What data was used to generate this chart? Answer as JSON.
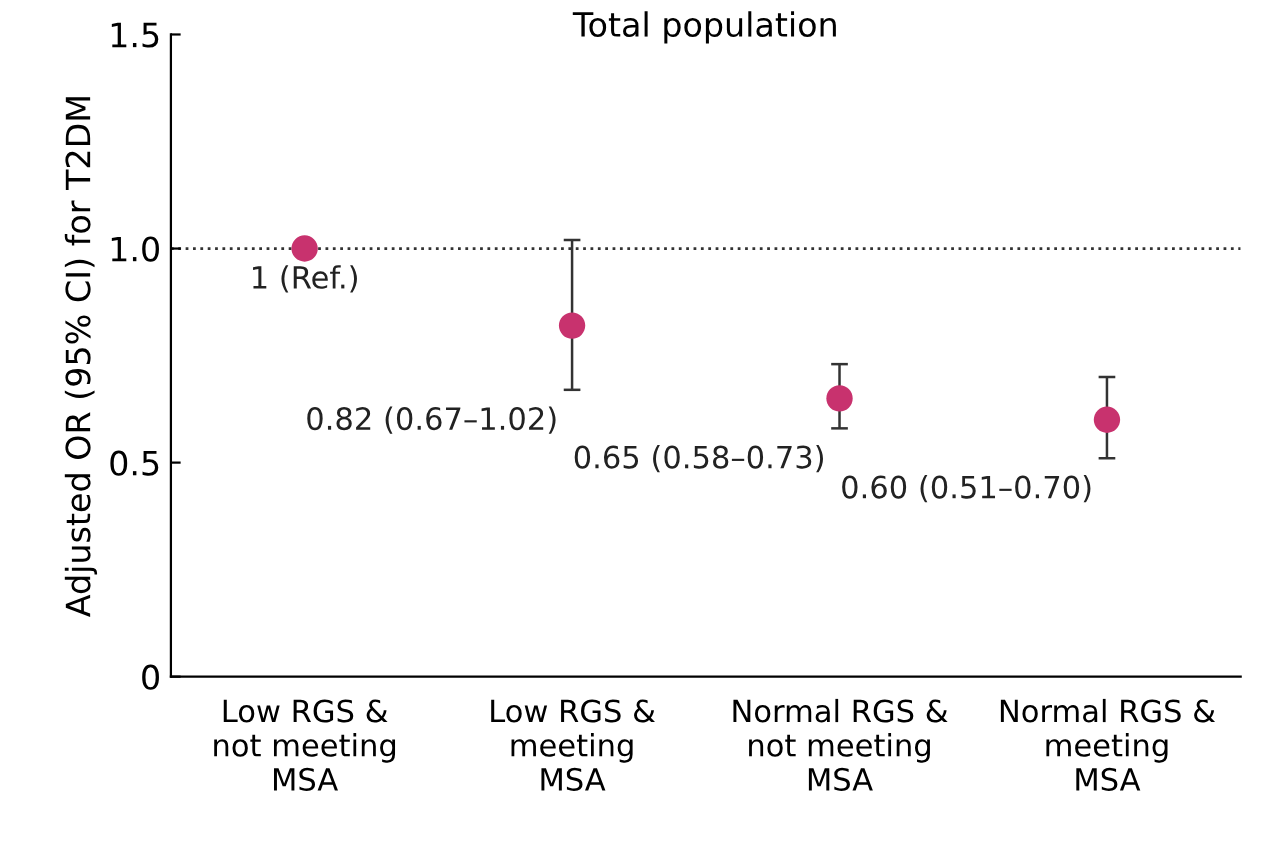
{
  "chart_data": {
    "type": "scatter",
    "title": "Total population",
    "ylabel": "Adjusted OR (95% CI) for T2DM",
    "categories": [
      "Low RGS &\nnot meeting\nMSA",
      "Low RGS &\nmeeting\nMSA",
      "Normal RGS &\nnot meeting\nMSA",
      "Normal RGS &\nmeeting\nMSA"
    ],
    "values": [
      1,
      0.82,
      0.65,
      0.6
    ],
    "errors": [
      null,
      [
        0.67,
        1.02
      ],
      [
        0.58,
        0.73
      ],
      [
        0.51,
        0.7
      ]
    ],
    "value_labels": [
      "1 (Ref.)",
      "0.82 (0.67–1.02)",
      "0.65 (0.58–0.73)",
      "0.60 (0.51–0.70)"
    ],
    "color": "#c8326e",
    "marker": "circle",
    "ylim": [
      0,
      1.5
    ],
    "yticks": [
      0,
      0.5,
      {
        "value": 1,
        "label": "1.0"
      },
      1.5
    ],
    "ref_lines": [
      {
        "axis": "y",
        "value": 1,
        "line_style": "dotted",
        "color": "#333333"
      }
    ],
    "grid": false,
    "legend": false
  }
}
